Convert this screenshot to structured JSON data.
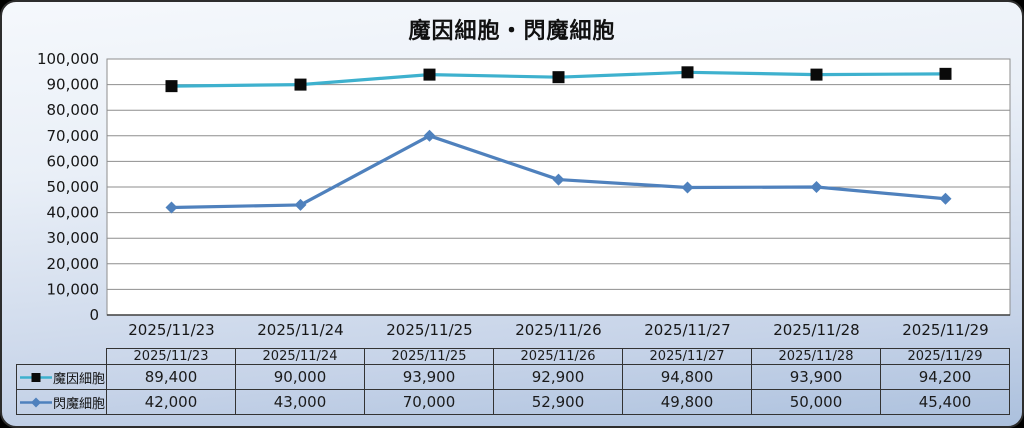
{
  "frame": {
    "bg_top": "#f5f8fc",
    "bg_bottom": "#abc0dd",
    "border_color": "#2d2d2d"
  },
  "chart_data": {
    "type": "line",
    "title": "魔因細胞・閃魔細胞",
    "categories": [
      "2025/11/23",
      "2025/11/24",
      "2025/11/25",
      "2025/11/26",
      "2025/11/27",
      "2025/11/28",
      "2025/11/29"
    ],
    "series": [
      {
        "name": "魔因細胞",
        "line_color": "#3eb1ce",
        "marker": "square",
        "marker_color": "#0a0a0a",
        "values": [
          89400,
          90000,
          93900,
          92900,
          94800,
          93900,
          94200
        ],
        "display_values": [
          "89,400",
          "90,000",
          "93,900",
          "92,900",
          "94,800",
          "93,900",
          "94,200"
        ]
      },
      {
        "name": "閃魔細胞",
        "line_color": "#4f81bd",
        "marker": "diamond",
        "marker_color": "#4f81bd",
        "values": [
          42000,
          43000,
          70000,
          52900,
          49800,
          50000,
          45400
        ],
        "display_values": [
          "42,000",
          "43,000",
          "70,000",
          "52,900",
          "49,800",
          "50,000",
          "45,400"
        ]
      }
    ],
    "ylim": [
      0,
      100000
    ],
    "ytick_step": 10000,
    "ytick_labels": [
      "0",
      "10,000",
      "20,000",
      "30,000",
      "40,000",
      "50,000",
      "60,000",
      "70,000",
      "80,000",
      "90,000",
      "100,000"
    ],
    "grid": true,
    "gridline_color": "#8e8e8e",
    "plot_bg": "#ffffff",
    "axis_line_color": "#3f3f3f",
    "legend_position": "data-table-left",
    "data_table_shown": true
  }
}
